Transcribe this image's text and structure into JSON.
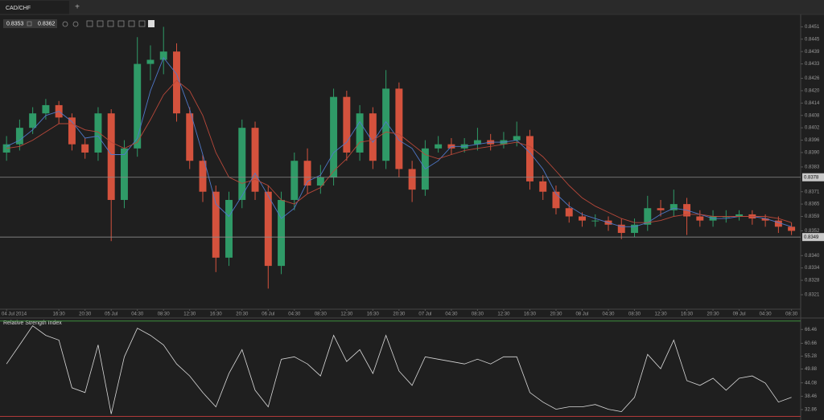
{
  "tab": {
    "label": "CAD/CHF",
    "add": "+"
  },
  "quote": {
    "bid": "0.8353",
    "ask": "0.8362"
  },
  "chart_data": [
    {
      "type": "candlestick",
      "open": [
        0.839,
        0.8394,
        0.8402,
        0.8409,
        0.8413,
        0.8407,
        0.8394,
        0.839,
        0.8409,
        0.8367,
        0.8392,
        0.8433,
        0.8435,
        0.8439,
        0.8409,
        0.8386,
        0.8371,
        0.8339,
        0.8367,
        0.8402,
        0.8371,
        0.8335,
        0.8367,
        0.8386,
        0.8374,
        0.8378,
        0.8417,
        0.839,
        0.8409,
        0.8386,
        0.8421,
        0.8382,
        0.8372,
        0.8392,
        0.8394,
        0.8392,
        0.8394,
        0.8396,
        0.8394,
        0.8396,
        0.8398,
        0.8376,
        0.8371,
        0.8363,
        0.8359,
        0.8357,
        0.8357,
        0.8355,
        0.8351,
        0.8355,
        0.8363,
        0.8362,
        0.8365,
        0.8359,
        0.8357,
        0.8359,
        0.8359,
        0.836,
        0.8358,
        0.8357,
        0.8354
      ],
      "high": [
        0.8398,
        0.8406,
        0.8412,
        0.8416,
        0.8415,
        0.8409,
        0.8397,
        0.8412,
        0.8411,
        0.8396,
        0.8446,
        0.8442,
        0.8451,
        0.8443,
        0.8412,
        0.8389,
        0.8374,
        0.8371,
        0.8406,
        0.8405,
        0.8374,
        0.8371,
        0.839,
        0.8392,
        0.8384,
        0.8421,
        0.842,
        0.8413,
        0.8412,
        0.843,
        0.8424,
        0.8386,
        0.8396,
        0.8398,
        0.8397,
        0.8397,
        0.8402,
        0.8399,
        0.84,
        0.8405,
        0.8401,
        0.8379,
        0.8374,
        0.8366,
        0.8361,
        0.836,
        0.8359,
        0.8358,
        0.8358,
        0.8369,
        0.8367,
        0.8372,
        0.8368,
        0.8362,
        0.8362,
        0.8362,
        0.8362,
        0.8362,
        0.836,
        0.8359,
        0.8356
      ],
      "low": [
        0.8386,
        0.8391,
        0.8399,
        0.8406,
        0.8404,
        0.8391,
        0.8387,
        0.8386,
        0.8347,
        0.8363,
        0.8388,
        0.8425,
        0.8428,
        0.8405,
        0.8382,
        0.8366,
        0.8332,
        0.8335,
        0.8363,
        0.8367,
        0.8324,
        0.8331,
        0.8362,
        0.837,
        0.837,
        0.8374,
        0.8386,
        0.8386,
        0.8382,
        0.8382,
        0.8378,
        0.8366,
        0.8369,
        0.839,
        0.8389,
        0.839,
        0.8391,
        0.8391,
        0.8392,
        0.8393,
        0.8372,
        0.8367,
        0.836,
        0.8356,
        0.8354,
        0.8354,
        0.8352,
        0.8348,
        0.8349,
        0.8352,
        0.8359,
        0.8359,
        0.835,
        0.8354,
        0.8354,
        0.8356,
        0.8357,
        0.8355,
        0.8354,
        0.8351,
        0.835
      ],
      "close": [
        0.8394,
        0.8402,
        0.8409,
        0.8413,
        0.8407,
        0.8394,
        0.839,
        0.8409,
        0.8367,
        0.8392,
        0.8433,
        0.8435,
        0.8439,
        0.8409,
        0.8386,
        0.8371,
        0.8339,
        0.8367,
        0.8402,
        0.8371,
        0.8335,
        0.8367,
        0.8386,
        0.8374,
        0.8378,
        0.8417,
        0.839,
        0.8409,
        0.8386,
        0.8421,
        0.8382,
        0.8372,
        0.8392,
        0.8394,
        0.8392,
        0.8394,
        0.8396,
        0.8394,
        0.8396,
        0.8398,
        0.8376,
        0.8371,
        0.8363,
        0.8359,
        0.8357,
        0.8357,
        0.8355,
        0.8351,
        0.8355,
        0.8363,
        0.8362,
        0.8365,
        0.8359,
        0.8357,
        0.8359,
        0.8359,
        0.836,
        0.8358,
        0.8357,
        0.8354,
        0.8352
      ],
      "up_color": "#2f9a67",
      "down_color": "#d4523d",
      "overlays": [
        {
          "color": "#4f78c8",
          "values": [
            0.8393,
            0.8396,
            0.8401,
            0.8408,
            0.841,
            0.8405,
            0.8397,
            0.8398,
            0.8389,
            0.8389,
            0.8397,
            0.842,
            0.8436,
            0.8428,
            0.8411,
            0.8389,
            0.8365,
            0.8359,
            0.8369,
            0.838,
            0.8369,
            0.8358,
            0.8363,
            0.8376,
            0.8379,
            0.839,
            0.8395,
            0.8405,
            0.8395,
            0.8405,
            0.8396,
            0.8392,
            0.8382,
            0.8386,
            0.8393,
            0.8393,
            0.8394,
            0.8395,
            0.8395,
            0.8396,
            0.839,
            0.8382,
            0.837,
            0.8364,
            0.836,
            0.8358,
            0.8356,
            0.8354,
            0.8354,
            0.8356,
            0.836,
            0.8363,
            0.8362,
            0.836,
            0.8358,
            0.8358,
            0.8359,
            0.8359,
            0.8358,
            0.8356,
            0.8354
          ]
        },
        {
          "color": "#b8483a",
          "values": [
            0.8392,
            0.8393,
            0.8396,
            0.84,
            0.8404,
            0.8404,
            0.8401,
            0.84,
            0.8395,
            0.8392,
            0.8395,
            0.8406,
            0.8418,
            0.8425,
            0.842,
            0.8408,
            0.839,
            0.8378,
            0.8375,
            0.8377,
            0.8374,
            0.8367,
            0.8365,
            0.837,
            0.8373,
            0.8381,
            0.8387,
            0.8395,
            0.8396,
            0.84,
            0.8399,
            0.8394,
            0.8389,
            0.8387,
            0.8389,
            0.8391,
            0.8392,
            0.8393,
            0.8394,
            0.8395,
            0.8393,
            0.8388,
            0.8381,
            0.8374,
            0.8368,
            0.8364,
            0.8361,
            0.8358,
            0.8356,
            0.8356,
            0.8357,
            0.8359,
            0.836,
            0.836,
            0.8359,
            0.8359,
            0.8359,
            0.8359,
            0.8359,
            0.8358,
            0.8356
          ]
        }
      ],
      "levels": [
        {
          "value": 0.8378
        },
        {
          "value": 0.8349
        }
      ],
      "xlim": [
        -0.5,
        60.7
      ],
      "ylim": [
        0.8314,
        0.8457
      ],
      "yticks": [
        0.8321,
        0.8328,
        0.8334,
        {
          "value": 0.834,
          "label": "0.8340"
        },
        0.8352,
        0.8359,
        0.8365,
        0.8371,
        0.8383,
        {
          "value": 0.839,
          "label": "0.8390"
        },
        0.8396,
        0.8402,
        0.8408,
        0.8414,
        {
          "value": 0.842,
          "label": "0.8420"
        },
        0.8426,
        0.8433,
        0.8439,
        0.8445,
        0.8451
      ],
      "xticks": [
        {
          "value": 0,
          "label": "04 Jul 2014"
        },
        {
          "value": 4,
          "label": "16:30"
        },
        {
          "value": 6,
          "label": "20:30"
        },
        {
          "value": 8,
          "label": "05 Jul"
        },
        {
          "value": 10,
          "label": "04:30"
        },
        {
          "value": 12,
          "label": "08:30"
        },
        {
          "value": 14,
          "label": "12:30"
        },
        {
          "value": 16,
          "label": "16:30"
        },
        {
          "value": 18,
          "label": "20:30"
        },
        {
          "value": 20,
          "label": "06 Jul"
        },
        {
          "value": 22,
          "label": "04:30"
        },
        {
          "value": 24,
          "label": "08:30"
        },
        {
          "value": 26,
          "label": "12:30"
        },
        {
          "value": 28,
          "label": "16:30"
        },
        {
          "value": 30,
          "label": "20:30"
        },
        {
          "value": 32,
          "label": "07 Jul"
        },
        {
          "value": 34,
          "label": "04:30"
        },
        {
          "value": 36,
          "label": "08:30"
        },
        {
          "value": 38,
          "label": "12:30"
        },
        {
          "value": 40,
          "label": "16:30"
        },
        {
          "value": 42,
          "label": "20:30"
        },
        {
          "value": 44,
          "label": "08 Jul"
        },
        {
          "value": 46,
          "label": "04:30"
        },
        {
          "value": 48,
          "label": "08:30"
        },
        {
          "value": 50,
          "label": "12:30"
        },
        {
          "value": 52,
          "label": "16:30"
        },
        {
          "value": 54,
          "label": "20:30"
        },
        {
          "value": 56,
          "label": "09 Jul"
        },
        {
          "value": 58,
          "label": "04:30"
        },
        {
          "value": 60,
          "label": "08:30"
        }
      ]
    },
    {
      "type": "line",
      "title": "Relative Strength Index",
      "color": "#d8d8d8",
      "values": [
        52,
        60,
        68,
        64,
        62,
        42,
        40,
        60,
        31,
        55,
        67,
        64,
        60,
        52,
        47,
        40,
        34,
        48,
        58,
        41,
        34,
        54,
        55,
        52,
        47,
        64,
        53,
        58,
        48,
        64,
        49,
        43,
        55,
        54,
        53,
        52,
        54,
        52,
        55,
        55,
        40,
        36,
        33,
        34,
        34,
        35,
        33,
        32,
        38,
        56,
        50,
        62,
        45,
        43,
        46,
        41,
        46,
        47,
        44,
        36,
        38
      ],
      "levels": [
        {
          "value": 70,
          "color": "#3f8f3f"
        },
        {
          "value": 30,
          "color": "#b03a3a"
        }
      ],
      "xlim": [
        -0.5,
        60.7
      ],
      "ylim": [
        29.5,
        70.6
      ],
      "yticks": [
        32.86,
        38.46,
        44.08,
        49.88,
        55.28,
        60.66,
        66.46
      ]
    }
  ]
}
